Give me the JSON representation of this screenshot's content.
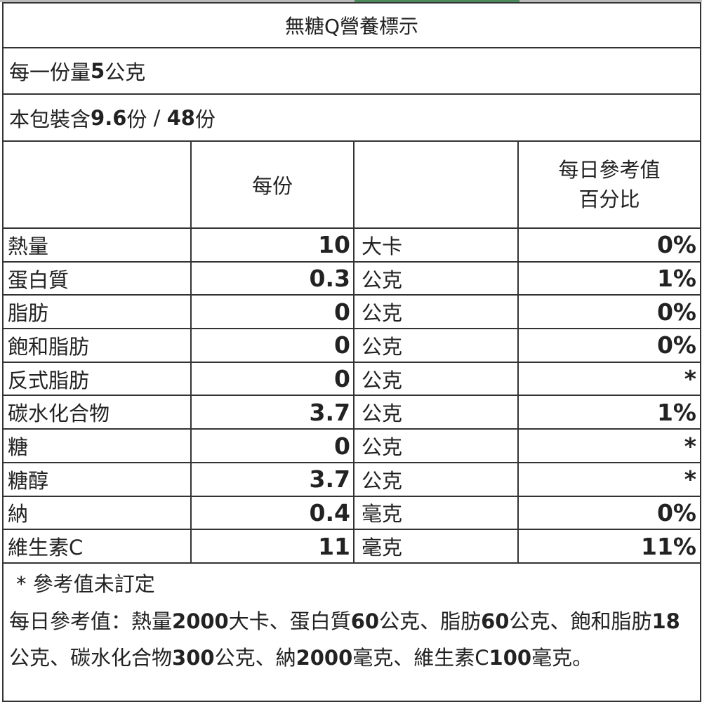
{
  "title": "無糖Q營養標示",
  "serving": {
    "prefix": "每一份量",
    "value": "5",
    "unit": "公克"
  },
  "package": {
    "prefix": "本包裝含",
    "value1": "9.6",
    "unit1": "份",
    "sep": " / ",
    "value2": "48",
    "unit2": "份"
  },
  "header": {
    "per_serving": "每份",
    "daily_line1": "每日參考值",
    "daily_line2": "百分比"
  },
  "rows": [
    {
      "name": "熱量",
      "value": "10",
      "unit": "大卡",
      "pct": "0%"
    },
    {
      "name": "蛋白質",
      "value": "0.3",
      "unit": "公克",
      "pct": "1%"
    },
    {
      "name": "脂肪",
      "value": "0",
      "unit": "公克",
      "pct": "0%"
    },
    {
      "name": "飽和脂肪",
      "value": "0",
      "unit": "公克",
      "pct": "0%"
    },
    {
      "name": "反式脂肪",
      "value": "0",
      "unit": "公克",
      "pct": "*"
    },
    {
      "name": "碳水化合物",
      "value": "3.7",
      "unit": "公克",
      "pct": "1%"
    },
    {
      "name": "糖",
      "value": "0",
      "unit": "公克",
      "pct": "*"
    },
    {
      "name": "糖醇",
      "value": "3.7",
      "unit": "公克",
      "pct": "*"
    },
    {
      "name": "納",
      "value": "0.4",
      "unit": "毫克",
      "pct": "0%"
    },
    {
      "name": "維生素C",
      "value": "11",
      "unit": "毫克",
      "pct": "11%"
    }
  ],
  "footer": {
    "note": "* 參考值未訂定",
    "segments": [
      {
        "t": "每日參考值：熱量",
        "b": false
      },
      {
        "t": "2000",
        "b": true
      },
      {
        "t": "大卡、蛋白質",
        "b": false
      },
      {
        "t": "60",
        "b": true
      },
      {
        "t": "公克、脂肪",
        "b": false
      },
      {
        "t": "60",
        "b": true
      },
      {
        "t": "公克、飽和脂肪",
        "b": false
      },
      {
        "t": "18",
        "b": true
      },
      {
        "t": "公克、碳水化合物",
        "b": false
      },
      {
        "t": "300",
        "b": true
      },
      {
        "t": "公克、納",
        "b": false
      },
      {
        "t": "2000",
        "b": true
      },
      {
        "t": "毫克、維生素C",
        "b": false
      },
      {
        "t": "100",
        "b": true
      },
      {
        "t": "毫克。",
        "b": false
      }
    ]
  },
  "colors": {
    "border": "#333333",
    "accent_bar": "#4a8a5a"
  }
}
